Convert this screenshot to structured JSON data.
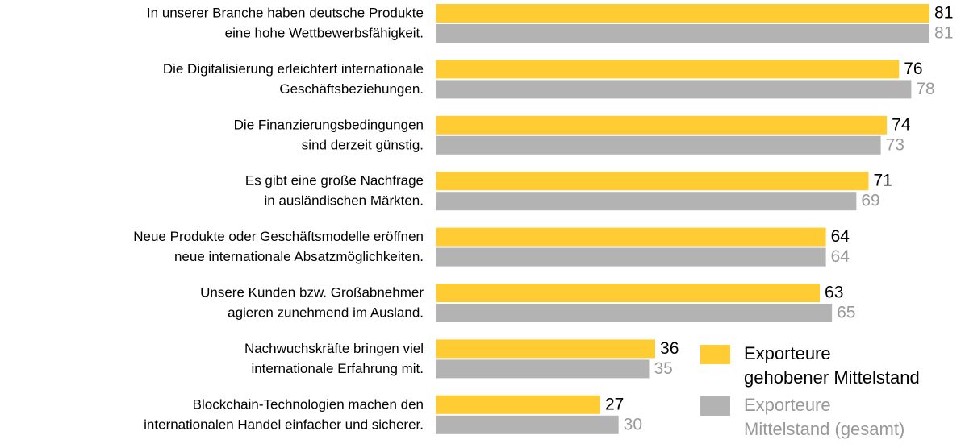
{
  "chart_data": {
    "type": "bar",
    "orientation": "horizontal",
    "categories": [
      [
        "In unserer Branche haben deutsche Produkte",
        "eine hohe Wettbewerbsfähigkeit."
      ],
      [
        "Die Digitalisierung erleichtert internationale",
        "Geschäftsbeziehungen."
      ],
      [
        "Die Finanzierungsbedingungen",
        "sind derzeit günstig."
      ],
      [
        "Es gibt eine große Nachfrage",
        "in ausländischen Märkten."
      ],
      [
        "Neue Produkte oder Geschäftsmodelle eröffnen",
        "neue internationale Absatzmöglichkeiten."
      ],
      [
        "Unsere Kunden bzw. Großabnehmer",
        "agieren zunehmend im Ausland."
      ],
      [
        "Nachwuchskräfte bringen viel",
        "internationale Erfahrung mit."
      ],
      [
        "Blockchain-Technologien machen den",
        "internationalen Handel einfacher und sicherer."
      ]
    ],
    "series": [
      {
        "name": [
          "Exporteure",
          "gehobener Mittelstand"
        ],
        "color": "#ffcc33",
        "label_color": "#000000",
        "values": [
          81,
          76,
          74,
          71,
          64,
          63,
          36,
          27
        ]
      },
      {
        "name": [
          "Exporteure",
          "Mittelstand (gesamt)"
        ],
        "color": "#b3b3b3",
        "label_color": "#999999",
        "values": [
          81,
          78,
          73,
          69,
          64,
          65,
          35,
          30
        ]
      }
    ]
  }
}
